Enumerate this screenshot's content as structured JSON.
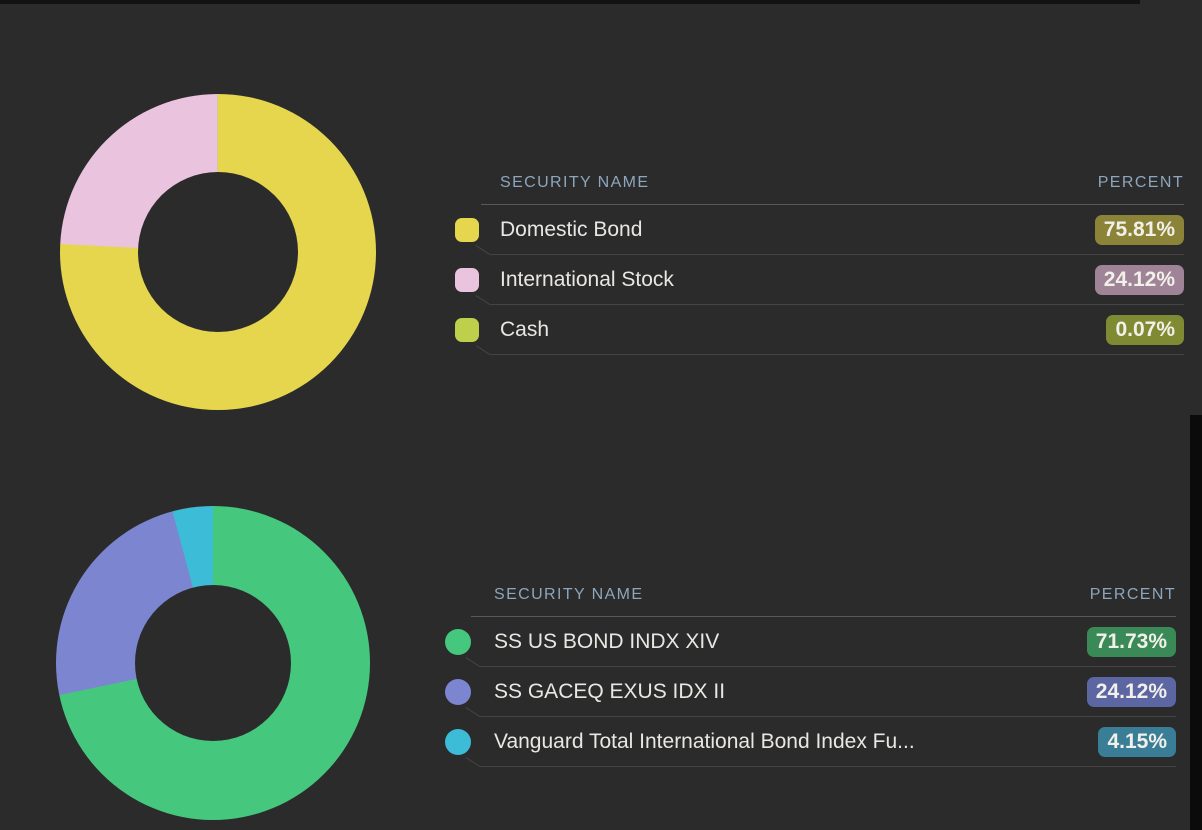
{
  "page": {
    "background": "#2b2b2b",
    "header_text_color": "#8da6bd"
  },
  "chart_data": [
    {
      "type": "pie",
      "style": "donut",
      "title": "",
      "labels": [
        "Domestic Bond",
        "International Stock",
        "Cash"
      ],
      "values": [
        75.81,
        24.12,
        0.07
      ],
      "colors": [
        "#e5d64e",
        "#eac4de",
        "#bed04b"
      ],
      "legend_position": "right"
    },
    {
      "type": "pie",
      "style": "donut",
      "title": "",
      "labels": [
        "SS US BOND INDX XIV",
        "SS GACEQ EXUS IDX II",
        "Vanguard Total International Bond Index Fu..."
      ],
      "values": [
        71.73,
        24.12,
        4.15
      ],
      "colors": [
        "#45c87e",
        "#7b85d0",
        "#3dbcd8"
      ],
      "legend_position": "right"
    }
  ],
  "tables": [
    {
      "headers": {
        "name": "SECURITY NAME",
        "percent": "PERCENT"
      },
      "rows": [
        {
          "name": "Domestic Bond",
          "percent": "75.81%",
          "swatch_color": "#e5d64e",
          "badge_color": "#8b8338"
        },
        {
          "name": "International Stock",
          "percent": "24.12%",
          "swatch_color": "#eac4de",
          "badge_color": "#9f8397"
        },
        {
          "name": "Cash",
          "percent": "0.07%",
          "swatch_color": "#bed04b",
          "badge_color": "#7e8b33"
        }
      ]
    },
    {
      "headers": {
        "name": "SECURITY NAME",
        "percent": "PERCENT"
      },
      "rows": [
        {
          "name": "SS US BOND INDX XIV",
          "percent": "71.73%",
          "swatch_color": "#45c87e",
          "badge_color": "#398a57"
        },
        {
          "name": "SS GACEQ EXUS IDX II",
          "percent": "24.12%",
          "swatch_color": "#7b85d0",
          "badge_color": "#5b66a3"
        },
        {
          "name": "Vanguard Total International Bond Index Fu...",
          "percent": "4.15%",
          "swatch_color": "#3dbcd8",
          "badge_color": "#397e96"
        }
      ]
    }
  ]
}
